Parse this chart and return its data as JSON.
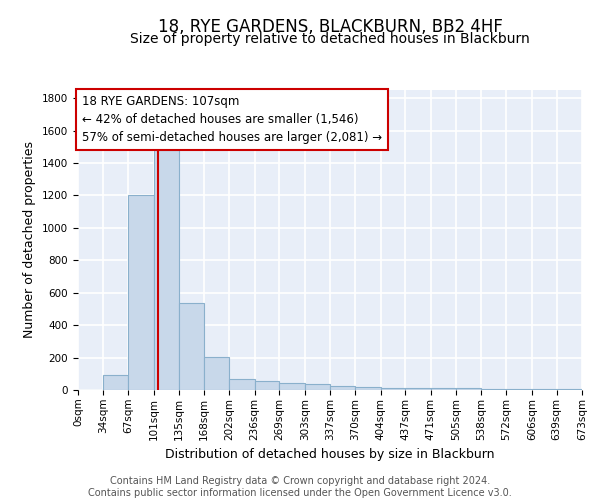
{
  "title1": "18, RYE GARDENS, BLACKBURN, BB2 4HF",
  "title2": "Size of property relative to detached houses in Blackburn",
  "xlabel": "Distribution of detached houses by size in Blackburn",
  "ylabel": "Number of detached properties",
  "bin_edges": [
    0,
    34,
    67,
    101,
    135,
    168,
    202,
    236,
    269,
    303,
    337,
    370,
    404,
    437,
    471,
    505,
    538,
    572,
    606,
    639,
    673
  ],
  "bar_heights": [
    0,
    90,
    1200,
    1480,
    535,
    205,
    70,
    55,
    45,
    35,
    25,
    20,
    15,
    10,
    10,
    10,
    5,
    5,
    5,
    5
  ],
  "bar_color": "#c8d8ea",
  "bar_edge_color": "#8ab0cc",
  "bar_edge_width": 0.8,
  "red_line_x": 107,
  "red_line_color": "#cc0000",
  "ylim": [
    0,
    1850
  ],
  "yticks": [
    0,
    200,
    400,
    600,
    800,
    1000,
    1200,
    1400,
    1600,
    1800
  ],
  "annotation_text_line1": "18 RYE GARDENS: 107sqm",
  "annotation_text_line2": "← 42% of detached houses are smaller (1,546)",
  "annotation_text_line3": "57% of semi-detached houses are larger (2,081) →",
  "annotation_box_edge_color": "#cc0000",
  "footer_text": "Contains HM Land Registry data © Crown copyright and database right 2024.\nContains public sector information licensed under the Open Government Licence v3.0.",
  "bg_color": "#e8eef8",
  "grid_color": "white",
  "title1_fontsize": 12,
  "title2_fontsize": 10,
  "tick_label_fontsize": 7.5,
  "ylabel_fontsize": 9,
  "xlabel_fontsize": 9,
  "annotation_fontsize": 8.5,
  "footer_fontsize": 7
}
